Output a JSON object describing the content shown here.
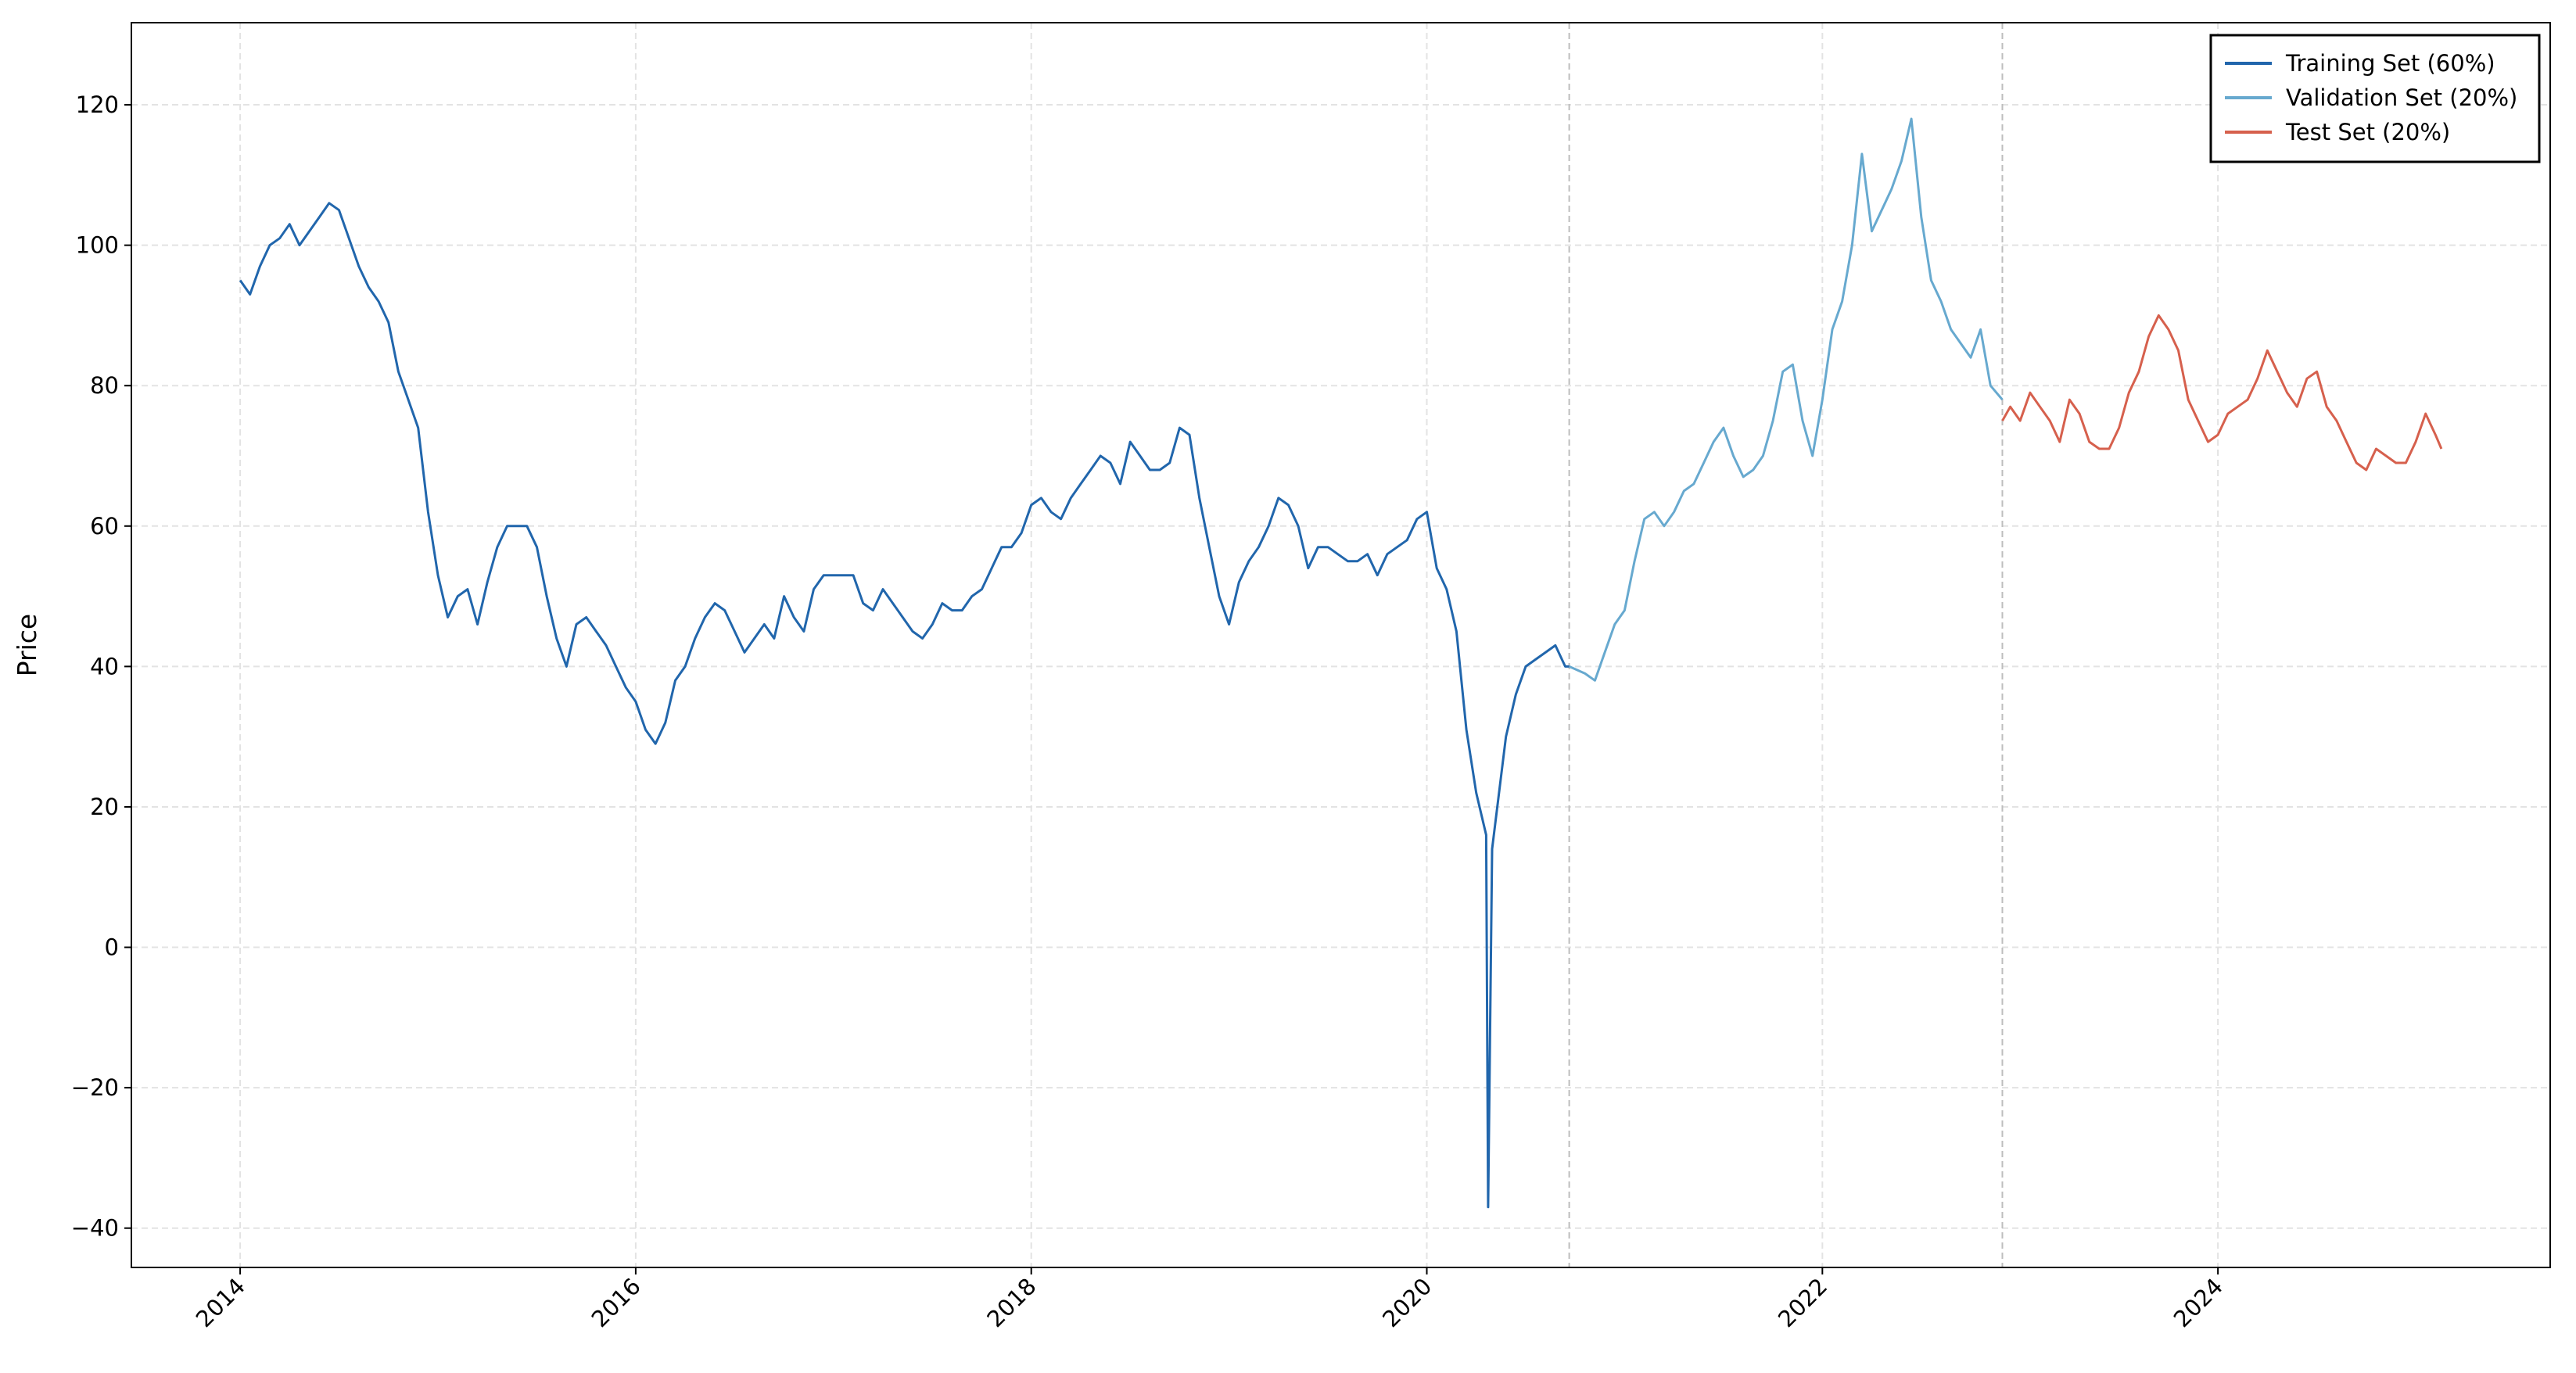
{
  "chart_data": {
    "type": "line",
    "ylabel": "Price",
    "xlim": [
      2013.45,
      2025.68
    ],
    "ylim": [
      -45.6,
      131.7
    ],
    "xticks": [
      2014,
      2016,
      2018,
      2020,
      2022,
      2024
    ],
    "yticks": [
      {
        "value": -40,
        "label": "−40"
      },
      {
        "value": -20,
        "label": "−20"
      },
      0,
      20,
      40,
      60,
      80,
      100,
      120
    ],
    "grid": true,
    "legend": "upper right",
    "vlines": [
      2020.72,
      2022.91
    ],
    "series": [
      {
        "name": "Training Set (60%)",
        "color": "#2166ac",
        "x": [
          2014.0,
          2014.05,
          2014.1,
          2014.15,
          2014.2,
          2014.25,
          2014.3,
          2014.35,
          2014.4,
          2014.45,
          2014.5,
          2014.55,
          2014.6,
          2014.65,
          2014.7,
          2014.75,
          2014.8,
          2014.85,
          2014.9,
          2014.95,
          2015.0,
          2015.05,
          2015.1,
          2015.15,
          2015.2,
          2015.25,
          2015.3,
          2015.35,
          2015.4,
          2015.45,
          2015.5,
          2015.55,
          2015.6,
          2015.65,
          2015.7,
          2015.75,
          2015.8,
          2015.85,
          2015.9,
          2015.95,
          2016.0,
          2016.05,
          2016.1,
          2016.15,
          2016.2,
          2016.25,
          2016.3,
          2016.35,
          2016.4,
          2016.45,
          2016.5,
          2016.55,
          2016.6,
          2016.65,
          2016.7,
          2016.75,
          2016.8,
          2016.85,
          2016.9,
          2016.95,
          2017.0,
          2017.05,
          2017.1,
          2017.15,
          2017.2,
          2017.25,
          2017.3,
          2017.35,
          2017.4,
          2017.45,
          2017.5,
          2017.55,
          2017.6,
          2017.65,
          2017.7,
          2017.75,
          2017.8,
          2017.85,
          2017.9,
          2017.95,
          2018.0,
          2018.05,
          2018.1,
          2018.15,
          2018.2,
          2018.25,
          2018.3,
          2018.35,
          2018.4,
          2018.45,
          2018.5,
          2018.55,
          2018.6,
          2018.65,
          2018.7,
          2018.75,
          2018.8,
          2018.85,
          2018.9,
          2018.95,
          2019.0,
          2019.05,
          2019.1,
          2019.15,
          2019.2,
          2019.25,
          2019.3,
          2019.35,
          2019.4,
          2019.45,
          2019.5,
          2019.55,
          2019.6,
          2019.65,
          2019.7,
          2019.75,
          2019.8,
          2019.85,
          2019.9,
          2019.95,
          2020.0,
          2020.05,
          2020.1,
          2020.15,
          2020.2,
          2020.25,
          2020.3,
          2020.31,
          2020.33,
          2020.4,
          2020.45,
          2020.5,
          2020.55,
          2020.6,
          2020.65,
          2020.7,
          2020.72
        ],
        "values": [
          95,
          93,
          97,
          100,
          101,
          103,
          100,
          102,
          104,
          106,
          105,
          101,
          97,
          94,
          92,
          89,
          82,
          78,
          74,
          62,
          53,
          47,
          50,
          51,
          46,
          52,
          57,
          60,
          60,
          60,
          57,
          50,
          44,
          40,
          46,
          47,
          45,
          43,
          40,
          37,
          35,
          31,
          29,
          32,
          38,
          40,
          44,
          47,
          49,
          48,
          45,
          42,
          44,
          46,
          44,
          50,
          47,
          45,
          51,
          53,
          53,
          53,
          53,
          49,
          48,
          51,
          49,
          47,
          45,
          44,
          46,
          49,
          48,
          48,
          50,
          51,
          54,
          57,
          57,
          59,
          63,
          64,
          62,
          61,
          64,
          66,
          68,
          70,
          69,
          66,
          72,
          70,
          68,
          68,
          69,
          74,
          73,
          64,
          57,
          50,
          46,
          52,
          55,
          57,
          60,
          64,
          63,
          60,
          54,
          57,
          57,
          56,
          55,
          55,
          56,
          53,
          56,
          57,
          58,
          61,
          62,
          54,
          51,
          45,
          31,
          22,
          16,
          -37,
          14,
          30,
          36,
          40,
          41,
          42,
          43,
          40,
          40
        ]
      },
      {
        "name": "Validation Set (20%)",
        "color": "#67a9cf",
        "x": [
          2020.72,
          2020.8,
          2020.85,
          2020.9,
          2020.95,
          2021.0,
          2021.05,
          2021.1,
          2021.15,
          2021.2,
          2021.25,
          2021.3,
          2021.35,
          2021.4,
          2021.45,
          2021.5,
          2021.55,
          2021.6,
          2021.65,
          2021.7,
          2021.75,
          2021.8,
          2021.85,
          2021.9,
          2021.95,
          2022.0,
          2022.05,
          2022.1,
          2022.15,
          2022.2,
          2022.25,
          2022.3,
          2022.35,
          2022.4,
          2022.45,
          2022.5,
          2022.55,
          2022.6,
          2022.65,
          2022.7,
          2022.75,
          2022.8,
          2022.85,
          2022.91
        ],
        "values": [
          40,
          39,
          38,
          42,
          46,
          48,
          55,
          61,
          62,
          60,
          62,
          65,
          66,
          69,
          72,
          74,
          70,
          67,
          68,
          70,
          75,
          82,
          83,
          75,
          70,
          78,
          88,
          92,
          100,
          113,
          102,
          105,
          108,
          112,
          118,
          104,
          95,
          92,
          88,
          86,
          84,
          88,
          80,
          78
        ]
      },
      {
        "name": "Test Set (20%)",
        "color": "#d6604d",
        "x": [
          2022.91,
          2022.95,
          2023.0,
          2023.05,
          2023.1,
          2023.15,
          2023.2,
          2023.25,
          2023.3,
          2023.35,
          2023.4,
          2023.45,
          2023.5,
          2023.55,
          2023.6,
          2023.65,
          2023.7,
          2023.75,
          2023.8,
          2023.85,
          2023.9,
          2023.95,
          2024.0,
          2024.05,
          2024.1,
          2024.15,
          2024.2,
          2024.25,
          2024.3,
          2024.35,
          2024.4,
          2024.45,
          2024.5,
          2024.55,
          2024.6,
          2024.65,
          2024.7,
          2024.75,
          2024.8,
          2024.85,
          2024.9,
          2024.95,
          2025.0,
          2025.05,
          2025.1,
          2025.13
        ],
        "values": [
          75,
          77,
          75,
          79,
          77,
          75,
          72,
          78,
          76,
          72,
          71,
          71,
          74,
          79,
          82,
          87,
          90,
          88,
          85,
          78,
          75,
          72,
          73,
          76,
          77,
          78,
          81,
          85,
          82,
          79,
          77,
          81,
          82,
          77,
          75,
          72,
          69,
          68,
          71,
          70,
          69,
          69,
          72,
          76,
          73,
          71
        ]
      }
    ]
  }
}
